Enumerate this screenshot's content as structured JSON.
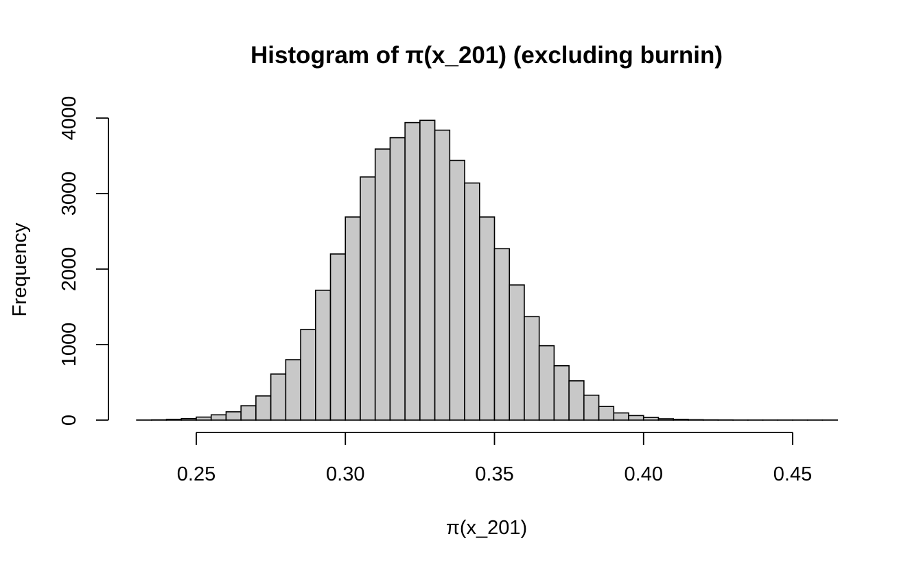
{
  "chart_data": {
    "type": "bar",
    "title": "Histogram of π(x_201) (excluding burnin)",
    "xlabel": "π(x_201)",
    "ylabel": "Frequency",
    "xlim": [
      0.23,
      0.465
    ],
    "ylim": [
      0,
      4000
    ],
    "x_ticks": [
      0.25,
      0.3,
      0.35,
      0.4,
      0.45
    ],
    "x_tick_labels": [
      "0.25",
      "0.30",
      "0.35",
      "0.40",
      "0.45"
    ],
    "y_ticks": [
      0,
      1000,
      2000,
      3000,
      4000
    ],
    "y_tick_labels": [
      "0",
      "1000",
      "2000",
      "3000",
      "4000"
    ],
    "bin_width": 0.005,
    "bins_start": [
      0.23,
      0.235,
      0.24,
      0.245,
      0.25,
      0.255,
      0.26,
      0.265,
      0.27,
      0.275,
      0.28,
      0.285,
      0.29,
      0.295,
      0.3,
      0.305,
      0.31,
      0.315,
      0.32,
      0.325,
      0.33,
      0.335,
      0.34,
      0.345,
      0.35,
      0.355,
      0.36,
      0.365,
      0.37,
      0.375,
      0.38,
      0.385,
      0.39,
      0.395,
      0.4,
      0.405,
      0.41,
      0.415,
      0.42,
      0.425,
      0.43,
      0.435,
      0.44,
      0.445,
      0.45,
      0.455,
      0.46
    ],
    "values": [
      1,
      3,
      10,
      20,
      40,
      70,
      110,
      190,
      320,
      610,
      800,
      1200,
      1720,
      2200,
      2690,
      3220,
      3590,
      3740,
      3940,
      3970,
      3840,
      3440,
      3140,
      2690,
      2270,
      1790,
      1370,
      985,
      720,
      520,
      330,
      180,
      95,
      60,
      35,
      18,
      10,
      5,
      3,
      2,
      1,
      1,
      1,
      1,
      1,
      1,
      1
    ],
    "grid": false,
    "legend": "none"
  }
}
